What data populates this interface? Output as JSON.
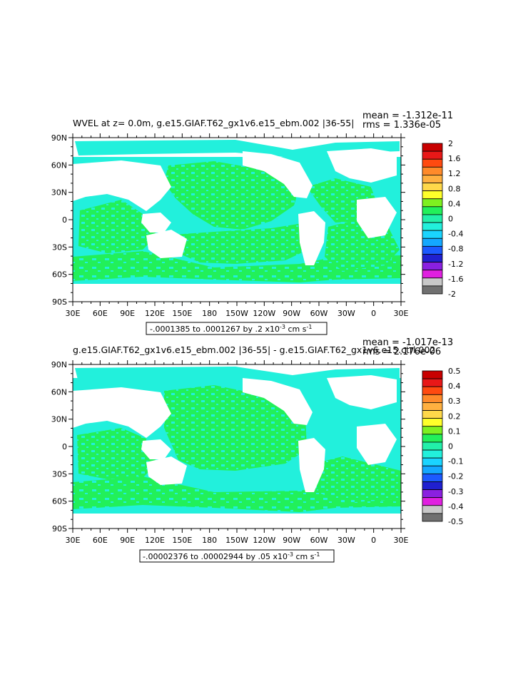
{
  "palette": {
    "ocean_green": "#22f05a",
    "ocean_cyan": "#22f0dc",
    "land": "#ffffff"
  },
  "chart_data": [
    {
      "type": "heatmap",
      "title": "WVEL at z=    0.0m, g.e15.GIAF.T62_gx1v6.e15_ebm.002  |36-55|",
      "stats": {
        "mean": "mean = -1.312e-11",
        "rms": "rms = 1.336e-05"
      },
      "x_ticks": [
        "30E",
        "60E",
        "90E",
        "120E",
        "150E",
        "180",
        "150W",
        "120W",
        "90W",
        "60W",
        "30W",
        "0",
        "30E"
      ],
      "y_ticks": [
        "90N",
        "60N",
        "30N",
        "0",
        "30S",
        "60S",
        "90S"
      ],
      "range_label": "-.0001385 to .0001267 by .2 x10",
      "range_exp": "-3",
      "range_units": " cm s",
      "range_units_exp": "-1",
      "colorbar": {
        "labels": [
          "2",
          "1.6",
          "1.2",
          "0.8",
          "0.4",
          "0",
          "-0.4",
          "-0.8",
          "-1.2",
          "-1.6",
          "-2"
        ],
        "colors": [
          "#c80000",
          "#e81818",
          "#ff4a10",
          "#ff8a2a",
          "#ffb040",
          "#ffd84a",
          "#ffff2a",
          "#7ef020",
          "#22f05a",
          "#22f0aa",
          "#22f0dc",
          "#1ad4ff",
          "#14a8ff",
          "#1c5aff",
          "#2020d0",
          "#8a20e0",
          "#e020e0",
          "#c8c8c8",
          "#707070"
        ]
      }
    },
    {
      "type": "heatmap",
      "title": "g.e15.GIAF.T62_gx1v6.e15_ebm.002 |36-55| - g.e15.GIAF.T62_gx1v6.e15.ctrl.002",
      "stats": {
        "mean": "mean = -1.017e-13",
        "rms": "rms = 2.176e-06"
      },
      "x_ticks": [
        "30E",
        "60E",
        "90E",
        "120E",
        "150E",
        "180",
        "150W",
        "120W",
        "90W",
        "60W",
        "30W",
        "0",
        "30E"
      ],
      "y_ticks": [
        "90N",
        "60N",
        "30N",
        "0",
        "30S",
        "60S",
        "90S"
      ],
      "range_label": "-.00002376 to .00002944 by .05 x10",
      "range_exp": "-3",
      "range_units": " cm s",
      "range_units_exp": "-1",
      "colorbar": {
        "labels": [
          "0.5",
          "0.4",
          "0.3",
          "0.2",
          "0.1",
          "0",
          "-0.1",
          "-0.2",
          "-0.3",
          "-0.4",
          "-0.5"
        ],
        "colors": [
          "#c80000",
          "#e81818",
          "#ff4a10",
          "#ff8a2a",
          "#ffb040",
          "#ffd84a",
          "#ffff2a",
          "#7ef020",
          "#22f05a",
          "#22f0aa",
          "#22f0dc",
          "#1ad4ff",
          "#14a8ff",
          "#1c5aff",
          "#2020d0",
          "#8a20e0",
          "#e020e0",
          "#c8c8c8",
          "#707070"
        ]
      }
    }
  ]
}
